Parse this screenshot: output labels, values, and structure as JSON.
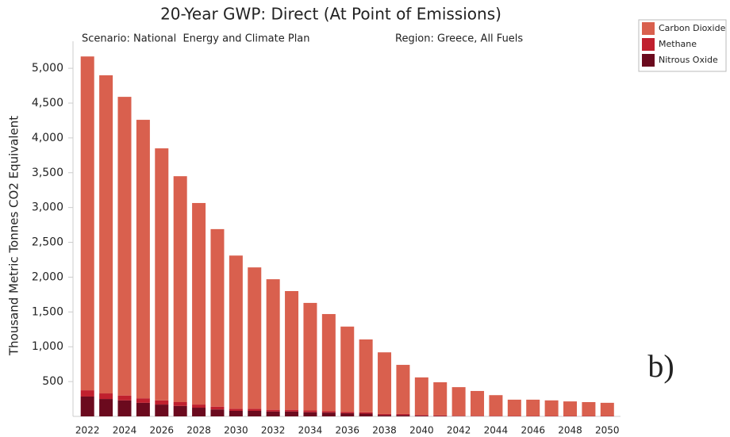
{
  "chart_data": {
    "type": "stacked-bar",
    "title": "20-Year GWP: Direct (At Point of Emissions)",
    "subtitle": "Scenario: National  Energy and Climate Plan",
    "region": "Region: Greece, All Fuels",
    "y_label": "Thousand Metric Tonnes CO2 Equivalent",
    "annotation": "b)",
    "categories": [
      "2022",
      null,
      "2024",
      null,
      "2026",
      null,
      "2028",
      null,
      "2030",
      null,
      "2032",
      null,
      "2034",
      null,
      "2036",
      null,
      "2038",
      null,
      "2040",
      null,
      "2042",
      null,
      "2044",
      null,
      "2046",
      null,
      "2048",
      null,
      "2050"
    ],
    "series": [
      {
        "name": "Carbon Dioxide",
        "color": "#d9604e",
        "values": [
          4795,
          4570,
          4290,
          4000,
          3620,
          3245,
          2895,
          2550,
          2200,
          2030,
          1875,
          1705,
          1545,
          1395,
          1225,
          1045,
          885,
          705,
          540,
          475,
          412,
          358,
          298,
          234,
          234,
          224,
          209,
          199,
          189
        ]
      },
      {
        "name": "Methane",
        "color": "#c0202e",
        "values": [
          90,
          80,
          70,
          65,
          60,
          55,
          45,
          40,
          30,
          30,
          25,
          25,
          25,
          20,
          20,
          20,
          15,
          15,
          10,
          10,
          5,
          5,
          5,
          5,
          5,
          5,
          5,
          5,
          5
        ]
      },
      {
        "name": "Nitrous Oxide",
        "color": "#6b0a1e",
        "values": [
          285,
          250,
          230,
          195,
          170,
          150,
          125,
          100,
          80,
          80,
          70,
          70,
          60,
          55,
          45,
          40,
          20,
          20,
          10,
          5,
          3,
          2,
          2,
          1,
          1,
          1,
          1,
          1,
          1
        ]
      }
    ],
    "ylim": [
      0,
      5400
    ],
    "yticks": [
      500,
      {
        "value": 1000,
        "label": "1,000"
      },
      {
        "value": 1500,
        "label": "1,500"
      },
      {
        "value": 2000,
        "label": "2,000"
      },
      {
        "value": 2500,
        "label": "2,500"
      },
      {
        "value": 3000,
        "label": "3,000"
      },
      {
        "value": 3500,
        "label": "3,500"
      },
      {
        "value": 4000,
        "label": "4,000"
      },
      {
        "value": 4500,
        "label": "4,500"
      },
      {
        "value": 5000,
        "label": "5,000"
      }
    ]
  }
}
